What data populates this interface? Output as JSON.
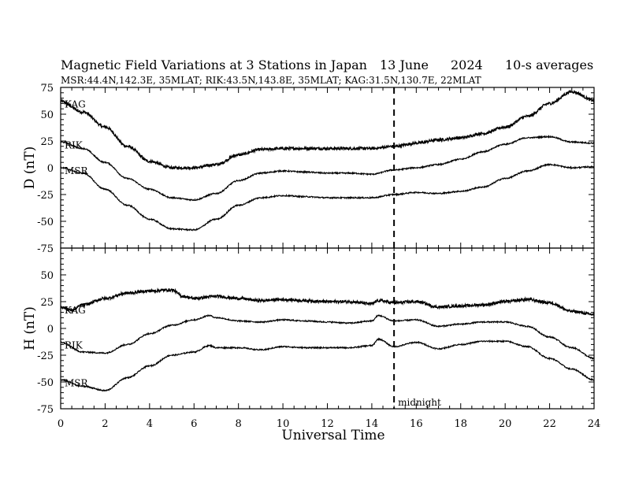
{
  "title": {
    "main": "Magnetic Field Variations at 3 Stations in Japan",
    "date": "13 June",
    "year": "2024",
    "averaging": "10-s averages"
  },
  "subtitle": "MSR:44.4N,142.3E, 35MLAT;  RIK:43.5N,143.8E, 35MLAT;  KAG:31.5N,130.7E, 22MLAT",
  "chart_data": [
    {
      "type": "line",
      "panel": "D",
      "ylabel": "D (nT)",
      "ylim": [
        -75,
        75
      ],
      "yticks": [
        "75",
        "50",
        "25",
        "0",
        "-25",
        "-50",
        "-75"
      ],
      "xlim": [
        0,
        24
      ],
      "series": [
        {
          "name": "KAG",
          "x": [
            0,
            1,
            2,
            3,
            4,
            5,
            6,
            7,
            8,
            9,
            10,
            11,
            12,
            13,
            14,
            15,
            16,
            17,
            18,
            19,
            20,
            21,
            22,
            23,
            24
          ],
          "values": [
            62,
            52,
            38,
            20,
            6,
            0,
            0,
            3,
            12,
            17,
            18,
            18,
            18,
            18,
            18,
            20,
            23,
            26,
            28,
            32,
            38,
            48,
            60,
            71,
            63
          ]
        },
        {
          "name": "RIK",
          "x": [
            0,
            1,
            2,
            3,
            4,
            5,
            6,
            7,
            8,
            9,
            10,
            11,
            12,
            13,
            14,
            15,
            16,
            17,
            18,
            19,
            20,
            21,
            22,
            23,
            24
          ],
          "values": [
            24,
            18,
            5,
            -10,
            -20,
            -28,
            -30,
            -24,
            -12,
            -5,
            -3,
            -4,
            -5,
            -5,
            -6,
            -2,
            0,
            3,
            8,
            15,
            22,
            28,
            29,
            24,
            23
          ]
        },
        {
          "name": "MSR",
          "x": [
            0,
            1,
            2,
            3,
            4,
            5,
            6,
            7,
            8,
            9,
            10,
            11,
            12,
            13,
            14,
            15,
            16,
            17,
            18,
            19,
            20,
            21,
            22,
            23,
            24
          ],
          "values": [
            0,
            -5,
            -20,
            -35,
            -48,
            -57,
            -58,
            -48,
            -35,
            -28,
            -26,
            -27,
            -28,
            -28,
            -28,
            -25,
            -23,
            -24,
            -22,
            -18,
            -10,
            -3,
            3,
            0,
            1
          ]
        }
      ]
    },
    {
      "type": "line",
      "panel": "H",
      "ylabel": "H (nT)",
      "ylim": [
        -75,
        75
      ],
      "yticks": [
        "",
        "50",
        "25",
        "0",
        "-25",
        "-50",
        "-75"
      ],
      "xlim": [
        0,
        24
      ],
      "xticks": [
        "0",
        "2",
        "4",
        "6",
        "8",
        "10",
        "12",
        "14",
        "16",
        "18",
        "20",
        "22",
        "24"
      ],
      "xlabel": "Universal Time",
      "series": [
        {
          "name": "KAG",
          "x": [
            0,
            0.5,
            1,
            2,
            3,
            4,
            5,
            5.5,
            6,
            7,
            8,
            9,
            10,
            11,
            12,
            13,
            14,
            14.3,
            15,
            16,
            17,
            18,
            19,
            20,
            21,
            22,
            23,
            24
          ],
          "values": [
            20,
            17,
            22,
            28,
            33,
            35,
            36,
            30,
            28,
            30,
            28,
            26,
            27,
            26,
            25,
            25,
            23,
            26,
            24,
            25,
            20,
            21,
            22,
            25,
            27,
            24,
            16,
            13
          ]
        },
        {
          "name": "RIK",
          "x": [
            0,
            1,
            2,
            3,
            4,
            5,
            6,
            6.7,
            7,
            8,
            9,
            10,
            11,
            12,
            13,
            14,
            14.3,
            15,
            16,
            17,
            18,
            19,
            20,
            21,
            22,
            23,
            24
          ],
          "values": [
            -13,
            -22,
            -23,
            -15,
            -5,
            3,
            8,
            12,
            10,
            7,
            6,
            8,
            7,
            6,
            5,
            7,
            12,
            7,
            8,
            2,
            4,
            6,
            6,
            2,
            -8,
            -18,
            -28
          ]
        },
        {
          "name": "MSR",
          "x": [
            0,
            1,
            2,
            3,
            4,
            5,
            6,
            6.7,
            7,
            8,
            9,
            10,
            11,
            12,
            13,
            14,
            14.3,
            15,
            16,
            17,
            18,
            19,
            20,
            21,
            22,
            23,
            24
          ],
          "values": [
            -48,
            -54,
            -58,
            -46,
            -35,
            -25,
            -22,
            -16,
            -18,
            -18,
            -20,
            -17,
            -18,
            -18,
            -18,
            -16,
            -10,
            -17,
            -13,
            -19,
            -15,
            -12,
            -12,
            -17,
            -28,
            -38,
            -48
          ]
        }
      ]
    }
  ],
  "midnight": {
    "x": 15,
    "label": "midnight"
  }
}
